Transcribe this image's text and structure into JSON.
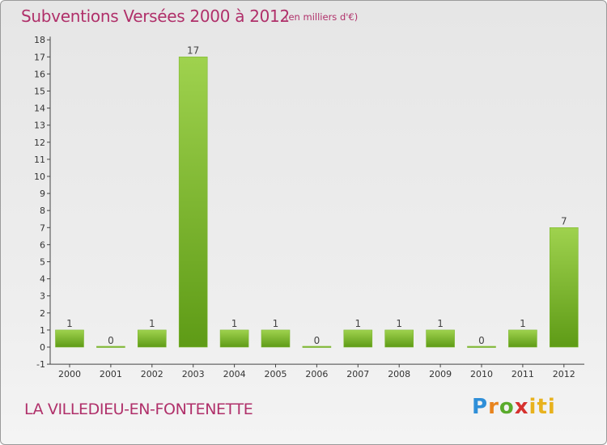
{
  "header": {
    "title": "Subventions Versées 2000 à 2012",
    "unit": "(en milliers d'€)"
  },
  "footer": {
    "commune": "LA VILLEDIEU-EN-FONTENETTE",
    "logo": "Proxiti",
    "logo_parts": [
      "P",
      "r",
      "o",
      "x",
      "iti"
    ]
  },
  "colors": {
    "text_accent": "#b0306a",
    "bar_light": "#9fd24e",
    "bar_dark": "#5e9b16"
  },
  "chart_data": {
    "type": "bar",
    "title": "Subventions Versées 2000 à 2012",
    "subtitle": "(en milliers d'€)",
    "categories": [
      "2000",
      "2001",
      "2002",
      "2003",
      "2004",
      "2005",
      "2006",
      "2007",
      "2008",
      "2009",
      "2010",
      "2011",
      "2012"
    ],
    "values": [
      1,
      0,
      1,
      17,
      1,
      1,
      0,
      1,
      1,
      1,
      0,
      1,
      7
    ],
    "ylim": [
      -1,
      18
    ],
    "yticks": [
      -1,
      0,
      1,
      2,
      3,
      4,
      5,
      6,
      7,
      8,
      9,
      10,
      11,
      12,
      13,
      14,
      15,
      16,
      17,
      18
    ],
    "grid": false,
    "legend": "none"
  }
}
